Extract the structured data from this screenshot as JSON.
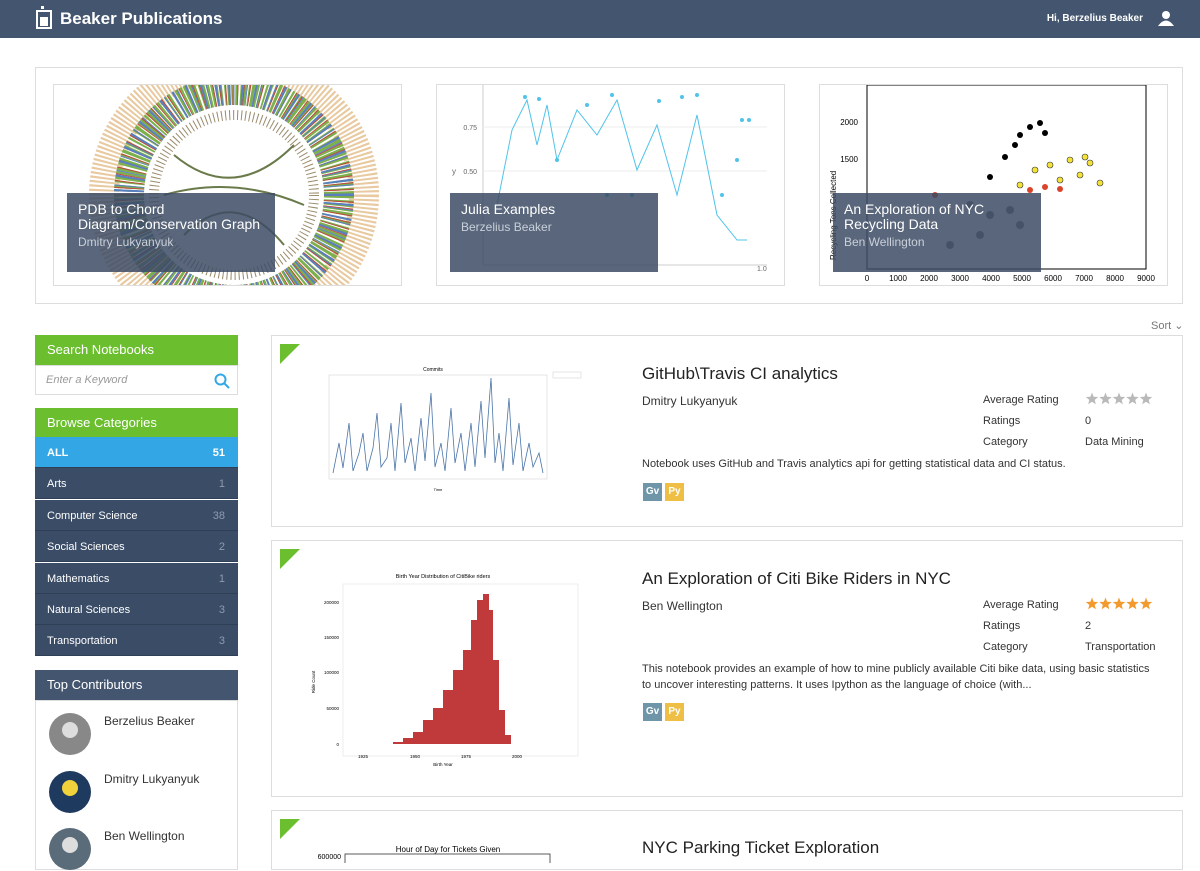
{
  "header": {
    "title": "Beaker Publications",
    "greeting": "Hi, Berzelius Beaker"
  },
  "featured": [
    {
      "title": "PDB to Chord Diagram/Conservation Graph",
      "author": "Dmitry Lukyanyuk"
    },
    {
      "title": "Julia Examples",
      "author": "Berzelius Beaker",
      "chart_texts": {
        "yticks": [
          "0.75",
          "0.50"
        ],
        "ylabel": "y",
        "xtick": "1.0"
      }
    },
    {
      "title": "An Exploration of NYC Recycling Data",
      "author": "Ben Wellington",
      "chart_texts": {
        "yticks": [
          "2000",
          "1500"
        ],
        "ylabel": "Recycling Tons Collected",
        "xticks": [
          "0",
          "1000",
          "2000",
          "3000",
          "4000",
          "5000",
          "6000",
          "7000",
          "8000",
          "9000"
        ]
      }
    }
  ],
  "sort": "Sort",
  "search": {
    "title": "Search Notebooks",
    "placeholder": "Enter a Keyword"
  },
  "categories": {
    "title": "Browse Categories",
    "items": [
      {
        "name": "ALL",
        "count": 51
      },
      {
        "name": "Arts",
        "count": 1
      },
      {
        "name": "Computer Science",
        "count": 38
      },
      {
        "name": "Social Sciences",
        "count": 2
      },
      {
        "name": "Mathematics",
        "count": 1
      },
      {
        "name": "Natural Sciences",
        "count": 3
      },
      {
        "name": "Transportation",
        "count": 3
      }
    ]
  },
  "contributors": {
    "title": "Top Contributors",
    "names": [
      "Berzelius Beaker",
      "Dmitry Lukyanyuk",
      "Ben Wellington"
    ]
  },
  "card_labels": {
    "average_rating": "Average Rating",
    "ratings": "Ratings",
    "category": "Category"
  },
  "notebooks": [
    {
      "title": "GitHub\\Travis CI analytics",
      "author": "Dmitry Lukyanyuk",
      "average_rating": 0,
      "ratings": 0,
      "category": "Data Mining",
      "description": "Notebook uses GitHub and Travis analytics api for getting statistical data and CI status.",
      "languages": [
        "Gv",
        "Py"
      ],
      "thumbnail": {
        "title": "Commits",
        "xlabel": "Time"
      }
    },
    {
      "title": "An Exploration of Citi Bike Riders in NYC",
      "author": "Ben Wellington",
      "average_rating": 5,
      "ratings": 2,
      "category": "Transportation",
      "description": "This notebook provides an example of how to mine publicly available Citi bike data, using basic statistics to uncover interesting patterns. It uses Ipython as the language of choice (with...",
      "languages": [
        "Gv",
        "Py"
      ],
      "thumbnail": {
        "title": "Birth Year Distribution of CitiBike riders",
        "yticks": [
          "200000",
          "150000",
          "100000",
          "50000",
          "0"
        ],
        "xticks": [
          "1925",
          "1950",
          "1975",
          "2000"
        ],
        "ylabel": "Ride Count",
        "xlabel": "Birth Year"
      }
    },
    {
      "title": "NYC Parking Ticket Exploration",
      "thumbnail": {
        "title": "Hour of Day for Tickets Given",
        "ytick": "600000"
      }
    }
  ]
}
